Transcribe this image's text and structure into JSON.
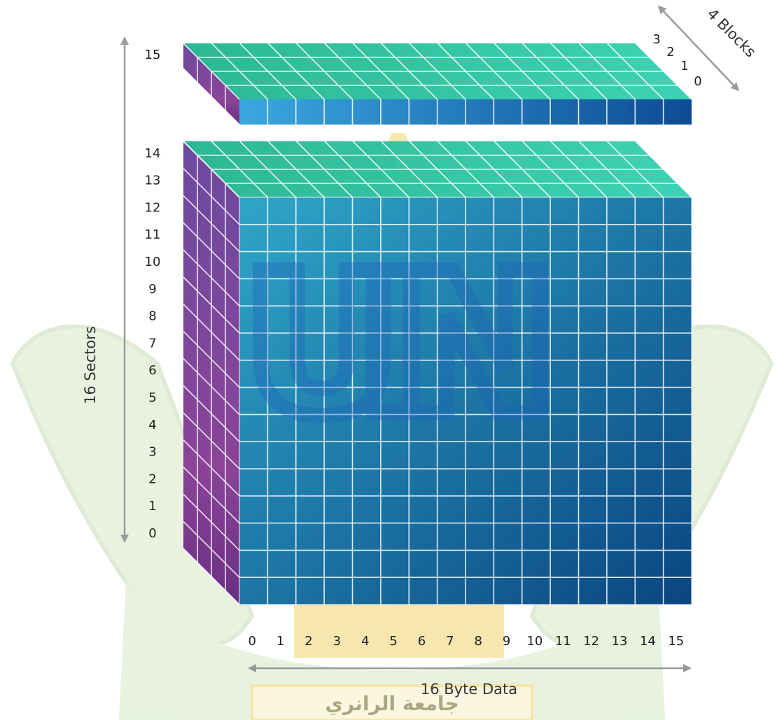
{
  "diagram": {
    "sector_axis": {
      "title": "16 Sectors",
      "labels": [
        "0",
        "1",
        "2",
        "3",
        "4",
        "5",
        "6",
        "7",
        "8",
        "9",
        "10",
        "11",
        "12",
        "13",
        "14",
        "15"
      ]
    },
    "byte_axis": {
      "title": "16 Byte Data",
      "labels": [
        "0",
        "1",
        "2",
        "3",
        "4",
        "5",
        "6",
        "7",
        "8",
        "9",
        "10",
        "11",
        "12",
        "13",
        "14",
        "15"
      ]
    },
    "block_axis": {
      "title": "4 Blocks",
      "labels": [
        "3",
        "2",
        "1",
        "0"
      ]
    }
  },
  "watermark": {
    "letters": "UIN",
    "caption": "جامعة الرانري",
    "colors": {
      "green": "#d6e8c6",
      "blue": "#1f63b8",
      "gold": "#f2d36b",
      "cream": "#f8efc6"
    }
  },
  "colors": {
    "front_left": "#2f9fc6",
    "front_right": "#0d4a85",
    "top_face": "#2fbf9a",
    "side_top": "#7a4fa8",
    "side_bottom": "#9a3f8e",
    "grid_line": "#ffffff",
    "axis_arrow": "#999999"
  }
}
